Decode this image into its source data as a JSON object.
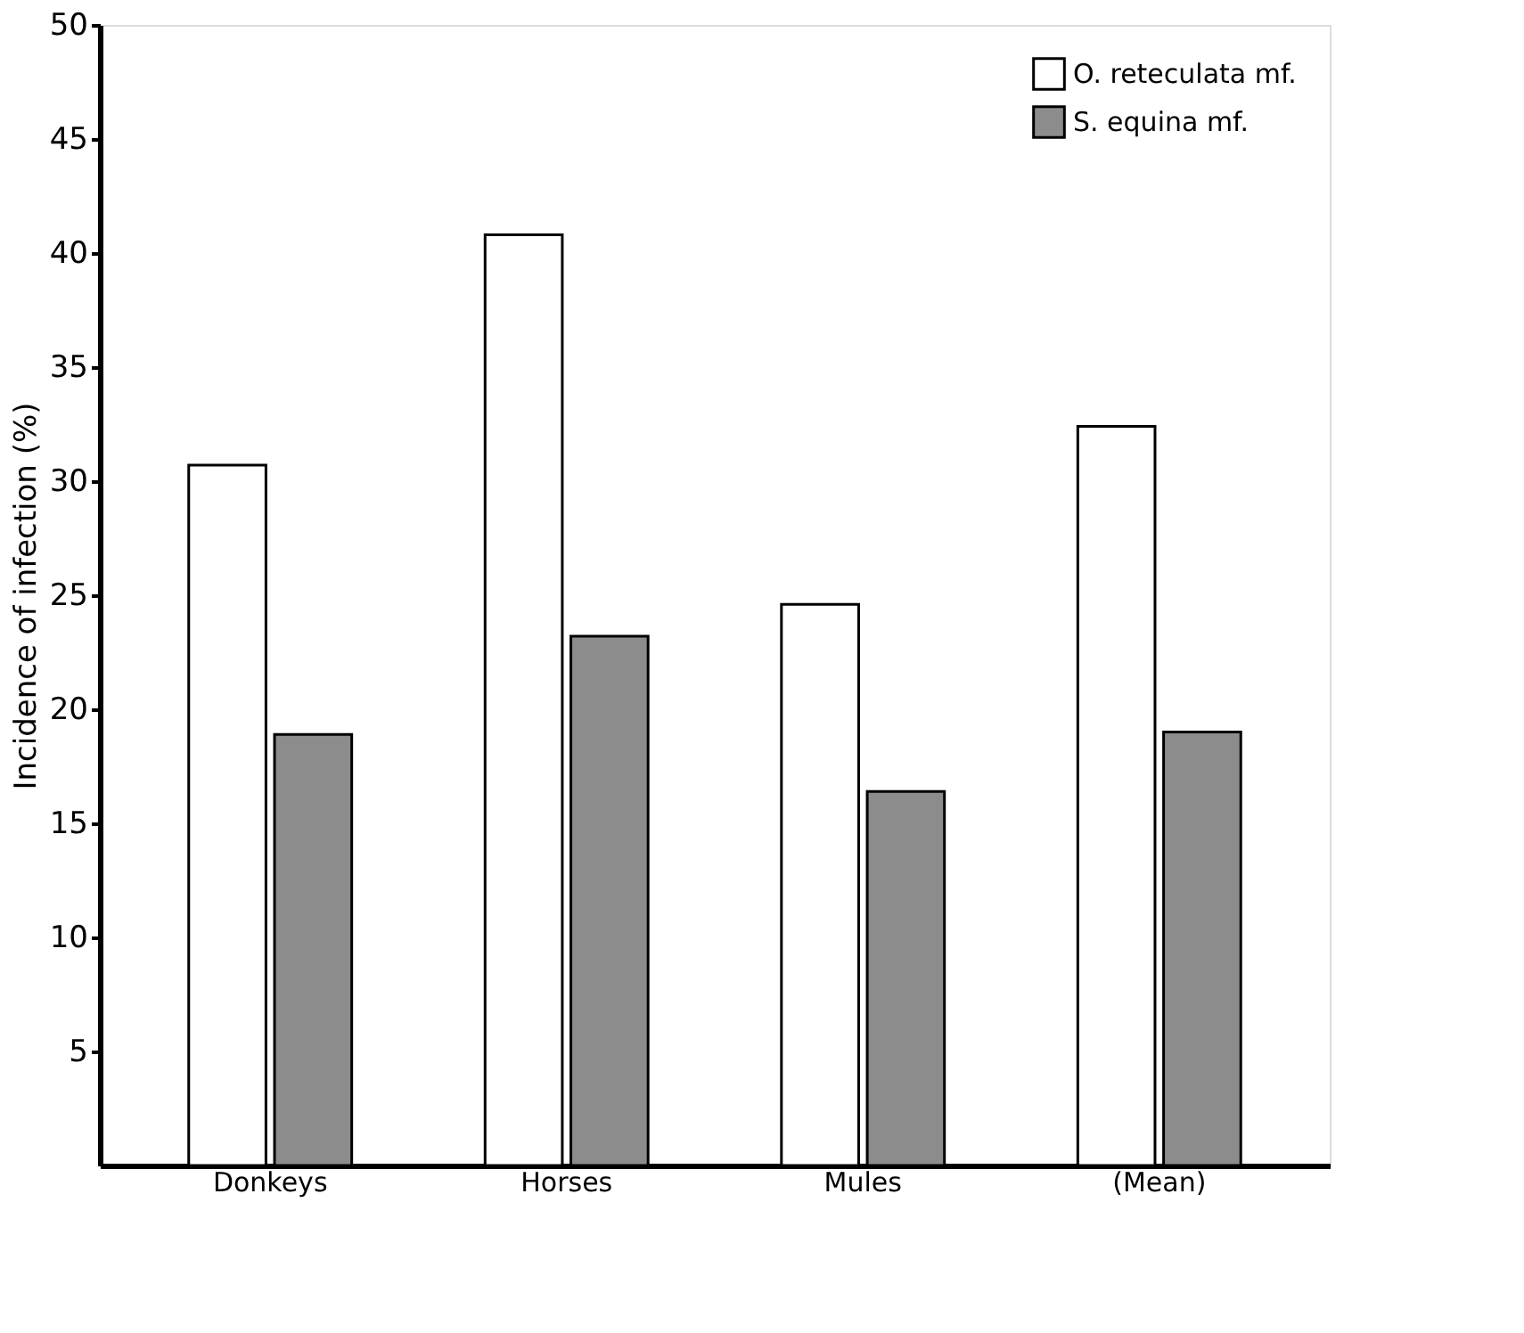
{
  "chart_data": {
    "type": "bar",
    "ylabel": "Incidence of infection (%)",
    "categories": [
      "Donkeys",
      "Horses",
      "Mules",
      "(Mean)"
    ],
    "series": [
      {
        "name": "O. reteculata mf.",
        "color": "#ffffff",
        "values": [
          30.7,
          40.8,
          24.6,
          32.4
        ]
      },
      {
        "name": "S. equina mf.",
        "color": "#8c8c8c",
        "values": [
          18.9,
          23.2,
          16.4,
          19.0
        ]
      }
    ],
    "ylim": [
      0,
      50
    ],
    "yticks": [
      5,
      10,
      15,
      20,
      25,
      30,
      35,
      40,
      45,
      50
    ],
    "grid": false,
    "legend": "top right"
  }
}
